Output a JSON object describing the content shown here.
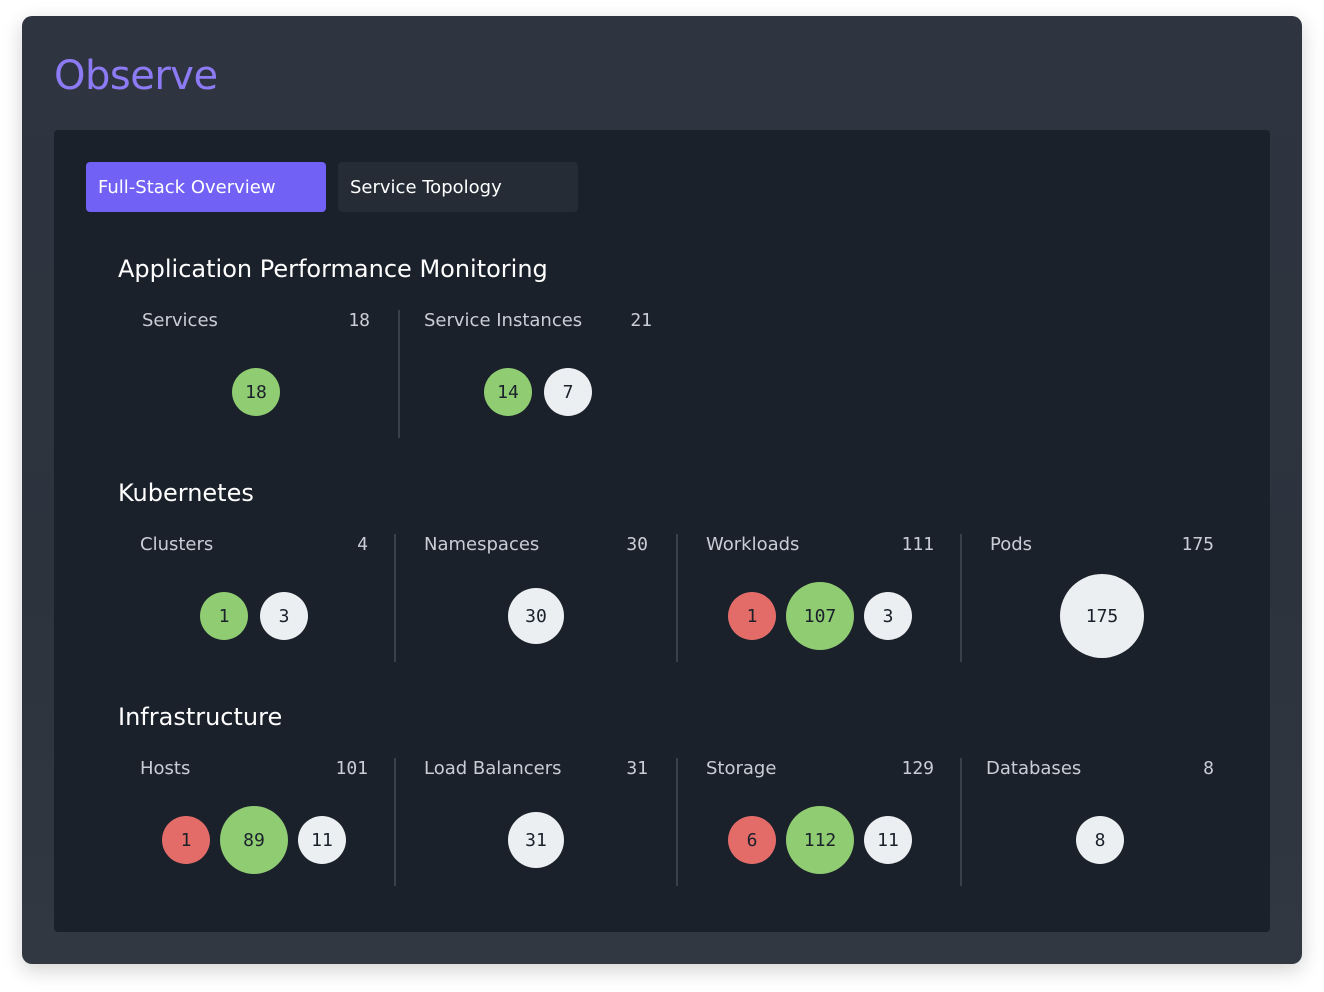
{
  "app": {
    "title": "Observe"
  },
  "tabs": [
    {
      "label": "Full-Stack Overview",
      "active": true
    },
    {
      "label": "Service Topology",
      "active": false
    }
  ],
  "colors": {
    "accent": "#7161f5",
    "title": "#8d7bf5",
    "healthy": "#8fcc72",
    "error": "#e46c68",
    "neutral": "#eceff2"
  },
  "sections": [
    {
      "title": "Application Performance Monitoring",
      "metrics": [
        {
          "label": "Services",
          "total": "18",
          "counts": [
            {
              "status": "healthy",
              "value": "18"
            }
          ]
        },
        {
          "label": "Service Instances",
          "total": "21",
          "counts": [
            {
              "status": "healthy",
              "value": "14"
            },
            {
              "status": "neutral",
              "value": "7"
            }
          ]
        }
      ]
    },
    {
      "title": "Kubernetes",
      "metrics": [
        {
          "label": "Clusters",
          "total": "4",
          "counts": [
            {
              "status": "healthy",
              "value": "1"
            },
            {
              "status": "neutral",
              "value": "3"
            }
          ]
        },
        {
          "label": "Namespaces",
          "total": "30",
          "counts": [
            {
              "status": "neutral",
              "value": "30"
            }
          ]
        },
        {
          "label": "Workloads",
          "total": "111",
          "counts": [
            {
              "status": "error",
              "value": "1"
            },
            {
              "status": "healthy",
              "value": "107"
            },
            {
              "status": "neutral",
              "value": "3"
            }
          ]
        },
        {
          "label": "Pods",
          "total": "175",
          "counts": [
            {
              "status": "neutral",
              "value": "175"
            }
          ]
        }
      ]
    },
    {
      "title": "Infrastructure",
      "metrics": [
        {
          "label": "Hosts",
          "total": "101",
          "counts": [
            {
              "status": "error",
              "value": "1"
            },
            {
              "status": "healthy",
              "value": "89"
            },
            {
              "status": "neutral",
              "value": "11"
            }
          ]
        },
        {
          "label": "Load Balancers",
          "total": "31",
          "counts": [
            {
              "status": "neutral",
              "value": "31"
            }
          ]
        },
        {
          "label": "Storage",
          "total": "129",
          "counts": [
            {
              "status": "error",
              "value": "6"
            },
            {
              "status": "healthy",
              "value": "112"
            },
            {
              "status": "neutral",
              "value": "11"
            }
          ]
        },
        {
          "label": "Databases",
          "total": "8",
          "counts": [
            {
              "status": "neutral",
              "value": "8"
            }
          ]
        }
      ]
    }
  ]
}
